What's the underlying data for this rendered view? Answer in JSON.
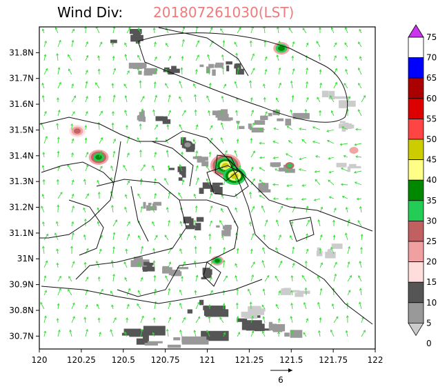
{
  "title": {
    "label": "Wind Div:",
    "timestamp": "201807261030(LST)"
  },
  "map": {
    "lon_range": [
      120,
      122
    ],
    "lat_range": [
      30.65,
      31.9
    ],
    "lon_ticks": [
      {
        "value": 120,
        "label": "120"
      },
      {
        "value": 120.25,
        "label": "120.25"
      },
      {
        "value": 120.5,
        "label": "120.5"
      },
      {
        "value": 120.75,
        "label": "120.75"
      },
      {
        "value": 121,
        "label": "121"
      },
      {
        "value": 121.25,
        "label": "121.25"
      },
      {
        "value": 121.5,
        "label": "121.5"
      },
      {
        "value": 121.75,
        "label": "121.75"
      },
      {
        "value": 122,
        "label": "122"
      }
    ],
    "lat_ticks": [
      {
        "value": 30.7,
        "label": "30.7N"
      },
      {
        "value": 30.8,
        "label": "30.8N"
      },
      {
        "value": 30.9,
        "label": "30.9N"
      },
      {
        "value": 31.0,
        "label": "31N"
      },
      {
        "value": 31.1,
        "label": "31.1N"
      },
      {
        "value": 31.2,
        "label": "31.2N"
      },
      {
        "value": 31.3,
        "label": "31.3N"
      },
      {
        "value": 31.4,
        "label": "31.4N"
      },
      {
        "value": 31.5,
        "label": "31.5N"
      },
      {
        "value": 31.6,
        "label": "31.6N"
      },
      {
        "value": 31.7,
        "label": "31.7N"
      },
      {
        "value": 31.8,
        "label": "31.8N"
      }
    ],
    "vector_color": "#33dd33",
    "reference_vector": {
      "label": "6"
    }
  },
  "colorbar": {
    "levels": [
      {
        "label": "75",
        "color": "#cc33ee"
      },
      {
        "label": "70",
        "color": "#ffffff"
      },
      {
        "label": "65",
        "color": "#0000ff"
      },
      {
        "label": "60",
        "color": "#aa0000"
      },
      {
        "label": "55",
        "color": "#dd0000"
      },
      {
        "label": "50",
        "color": "#ff4444"
      },
      {
        "label": "45",
        "color": "#cccc00"
      },
      {
        "label": "40",
        "color": "#ffff88"
      },
      {
        "label": "35",
        "color": "#008800"
      },
      {
        "label": "30",
        "color": "#22cc55"
      },
      {
        "label": "25",
        "color": "#c06060"
      },
      {
        "label": "20",
        "color": "#f0a0a0"
      },
      {
        "label": "15",
        "color": "#ffdddd"
      },
      {
        "label": "10",
        "color": "#555555"
      },
      {
        "label": "5",
        "color": "#999999"
      },
      {
        "label": "0",
        "color": "#cccccc"
      }
    ]
  }
}
